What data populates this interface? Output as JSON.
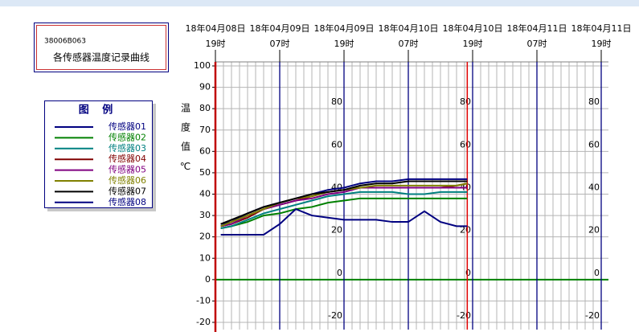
{
  "header": {
    "code": "38006B063",
    "title": "各传感器温度记录曲线"
  },
  "chart_data": {
    "type": "line",
    "ylabel": "温度值℃",
    "legend_title": "图 例",
    "x": [
      1,
      3,
      6,
      9,
      12,
      15,
      18,
      21,
      24,
      27,
      30,
      33,
      36,
      39,
      42,
      45,
      47
    ],
    "xlim": [
      0,
      72
    ],
    "xticks": [
      {
        "value": 0,
        "label": "18年04月08日"
      },
      {
        "value": 12,
        "label": "18年04月09日"
      },
      {
        "value": 24,
        "label": "18年04月09日"
      },
      {
        "value": 36,
        "label": "18年04月10日"
      },
      {
        "value": 48,
        "label": "18年04月10日"
      },
      {
        "value": 60,
        "label": "18年04月11日"
      },
      {
        "value": 72,
        "label": "18年04月11日"
      }
    ],
    "xtick_hours": [
      "19时",
      "07时",
      "19时",
      "07时",
      "19时",
      "07时",
      "19时"
    ],
    "ylim": [
      -20,
      100
    ],
    "yticks": [
      100,
      90,
      80,
      70,
      60,
      50,
      40,
      30,
      20,
      10,
      0,
      -10,
      -20
    ],
    "inner_ticks": [
      80,
      60,
      40,
      20,
      0,
      -20
    ],
    "cursor": 47,
    "grid": true,
    "series": [
      {
        "name": "传感器01",
        "color": "#000080",
        "values": [
          26,
          27,
          31,
          34,
          36,
          38,
          40,
          42,
          43,
          45,
          46,
          46,
          47,
          47,
          47,
          47,
          47
        ]
      },
      {
        "name": "传感器02",
        "color": "#008000",
        "values": [
          24,
          25,
          27,
          30,
          31,
          33,
          34,
          36,
          37,
          38,
          38,
          38,
          38,
          38,
          38,
          38,
          38
        ]
      },
      {
        "name": "传感器03",
        "color": "#008080",
        "values": [
          24,
          25,
          28,
          31,
          33,
          35,
          37,
          39,
          40,
          41,
          41,
          41,
          40,
          40,
          41,
          41,
          41
        ]
      },
      {
        "name": "传感器04",
        "color": "#800000",
        "values": [
          25,
          26,
          29,
          33,
          35,
          37,
          39,
          41,
          42,
          43,
          43,
          43,
          43,
          43,
          43,
          44,
          45
        ]
      },
      {
        "name": "传感器05",
        "color": "#800080",
        "values": [
          25,
          26,
          30,
          33,
          35,
          37,
          38,
          40,
          41,
          43,
          43,
          43,
          43,
          43,
          43,
          43,
          43
        ]
      },
      {
        "name": "传感器06",
        "color": "#808000",
        "values": [
          25,
          27,
          30,
          33,
          36,
          38,
          39,
          41,
          42,
          43,
          44,
          44,
          44,
          44,
          44,
          44,
          45
        ]
      },
      {
        "name": "传感器07",
        "color": "#000000",
        "values": [
          26,
          28,
          31,
          34,
          36,
          38,
          40,
          41,
          42,
          44,
          45,
          45,
          46,
          46,
          46,
          46,
          46
        ]
      },
      {
        "name": "传感器08",
        "color": "#000080",
        "values": [
          21,
          21,
          21,
          21,
          26,
          33,
          30,
          29,
          28,
          28,
          28,
          27,
          27,
          32,
          27,
          25,
          25
        ]
      }
    ]
  }
}
